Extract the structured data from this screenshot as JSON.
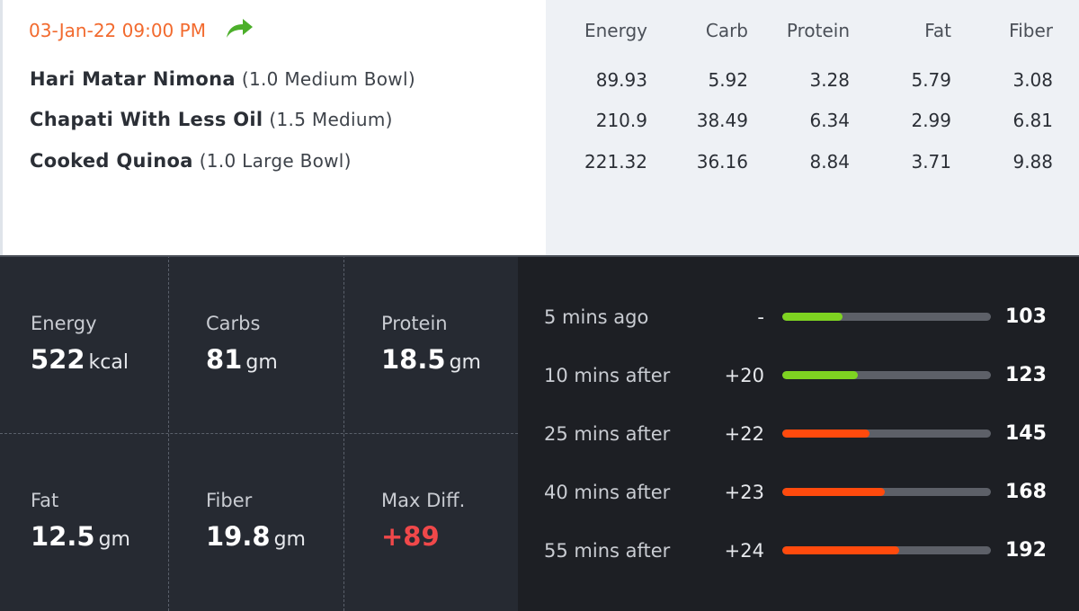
{
  "meal": {
    "timestamp": "03-Jan-22 09:00 PM",
    "share_icon": "share-arrow-icon",
    "columns": [
      "Energy",
      "Carb",
      "Protein",
      "Fat",
      "Fiber"
    ],
    "items": [
      {
        "name": "Hari Matar Nimona",
        "qty": "(1.0 Medium Bowl)",
        "values": [
          "89.93",
          "5.92",
          "3.28",
          "5.79",
          "3.08"
        ]
      },
      {
        "name": "Chapati With Less Oil",
        "qty": "(1.5 Medium)",
        "values": [
          "210.9",
          "38.49",
          "6.34",
          "2.99",
          "6.81"
        ]
      },
      {
        "name": "Cooked Quinoa",
        "qty": "(1.0 Large Bowl)",
        "values": [
          "221.32",
          "36.16",
          "8.84",
          "3.71",
          "9.88"
        ]
      }
    ]
  },
  "summary": {
    "energy": {
      "label": "Energy",
      "value": "522",
      "unit": "kcal"
    },
    "carbs": {
      "label": "Carbs",
      "value": "81",
      "unit": "gm"
    },
    "protein": {
      "label": "Protein",
      "value": "18.5",
      "unit": "gm"
    },
    "fat": {
      "label": "Fat",
      "value": "12.5",
      "unit": "gm"
    },
    "fiber": {
      "label": "Fiber",
      "value": "19.8",
      "unit": "gm"
    },
    "max_diff": {
      "label": "Max Diff.",
      "value": "+89"
    }
  },
  "glucose": {
    "colors": {
      "normal": "#7ed321",
      "high": "#ff4a0d"
    },
    "readings": [
      {
        "label": "5 mins ago",
        "delta": "-",
        "value": "103",
        "level": 0.29,
        "status": "normal"
      },
      {
        "label": "10 mins after",
        "delta": "+20",
        "value": "123",
        "level": 0.36,
        "status": "normal"
      },
      {
        "label": "25 mins after",
        "delta": "+22",
        "value": "145",
        "level": 0.42,
        "status": "high"
      },
      {
        "label": "40 mins after",
        "delta": "+23",
        "value": "168",
        "level": 0.49,
        "status": "high"
      },
      {
        "label": "55 mins after",
        "delta": "+24",
        "value": "192",
        "level": 0.56,
        "status": "high"
      }
    ]
  }
}
